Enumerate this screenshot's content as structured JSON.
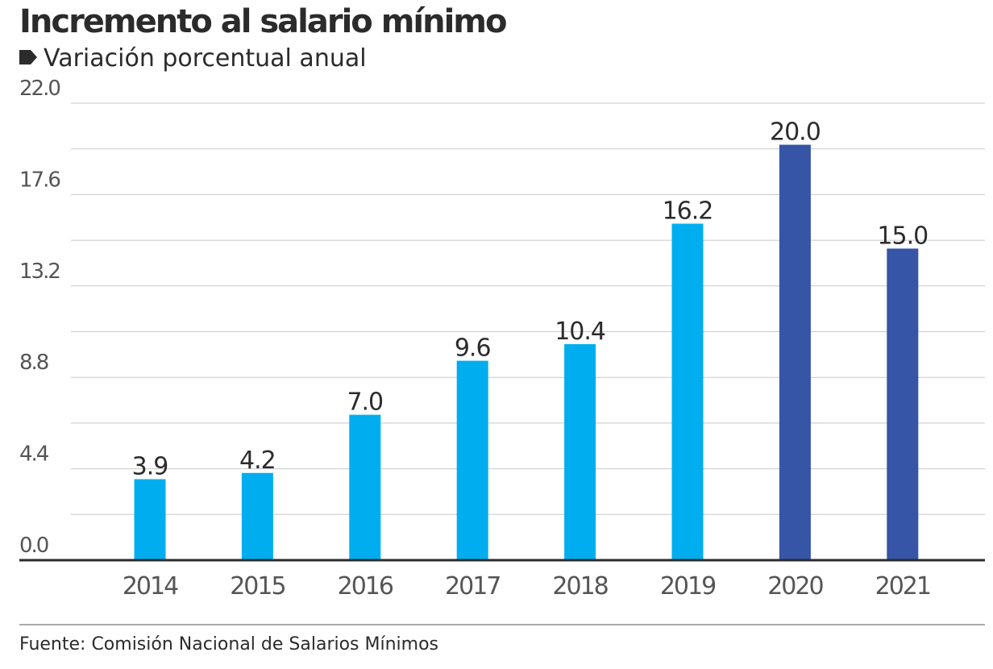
{
  "colors": {
    "bar_light": "#00aeef",
    "bar_dark": "#3655a6",
    "grid": "#c8c8c8",
    "axis": "#2b2b2b",
    "text": "#2b2b2b"
  },
  "chart_data": {
    "type": "bar",
    "title": "Incremento al salario mínimo",
    "subtitle": "Variación porcentual anual",
    "categories": [
      "2014",
      "2015",
      "2016",
      "2017",
      "2018",
      "2019",
      "2020",
      "2021"
    ],
    "values": [
      3.9,
      4.2,
      7.0,
      9.6,
      10.4,
      16.2,
      20.0,
      15.0
    ],
    "value_labels": [
      "3.9",
      "4.2",
      "7.0",
      "9.6",
      "10.4",
      "16.2",
      "20.0",
      "15.0"
    ],
    "bar_color_keys": [
      "bar_light",
      "bar_light",
      "bar_light",
      "bar_light",
      "bar_light",
      "bar_light",
      "bar_dark",
      "bar_dark"
    ],
    "ylim": [
      0,
      22
    ],
    "yticks": [
      0,
      4.4,
      8.8,
      13.2,
      17.6,
      22.0
    ],
    "ytick_labels": [
      "0.0",
      "4.4",
      "8.8",
      "13.2",
      "17.6",
      "22.0"
    ],
    "minor_gridlines": [
      2.2,
      6.6,
      11.0,
      15.4,
      19.8
    ],
    "grid": true,
    "source": "Fuente: Comisión Nacional de Salarios Mínimos"
  }
}
